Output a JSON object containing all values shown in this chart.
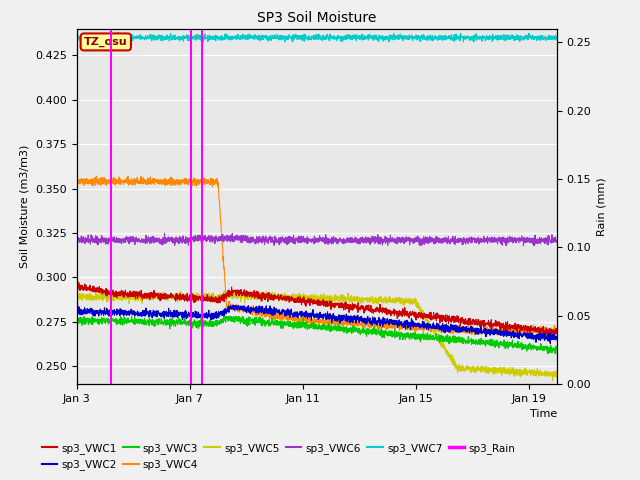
{
  "title": "SP3 Soil Moisture",
  "xlabel": "Time",
  "ylabel_left": "Soil Moisture (m3/m3)",
  "ylabel_right": "Rain (mm)",
  "ylim_left": [
    0.24,
    0.44
  ],
  "ylim_right": [
    0.0,
    0.26
  ],
  "xtick_labels": [
    "Jan 3",
    "Jan 7",
    "Jan 11",
    "Jan 15",
    "Jan 19"
  ],
  "xtick_positions": [
    0,
    4,
    8,
    12,
    16
  ],
  "annotation": "TZ_osu",
  "series_colors": {
    "sp3_VWC1": "#cc0000",
    "sp3_VWC2": "#0000cc",
    "sp3_VWC3": "#00cc00",
    "sp3_VWC4": "#ff8800",
    "sp3_VWC5": "#cccc00",
    "sp3_VWC6": "#9933cc",
    "sp3_VWC7": "#00cccc",
    "sp3_Rain": "#ff00ff"
  },
  "plot_bg_color": "#e8e8e8",
  "fig_bg_color": "#f0f0f0"
}
